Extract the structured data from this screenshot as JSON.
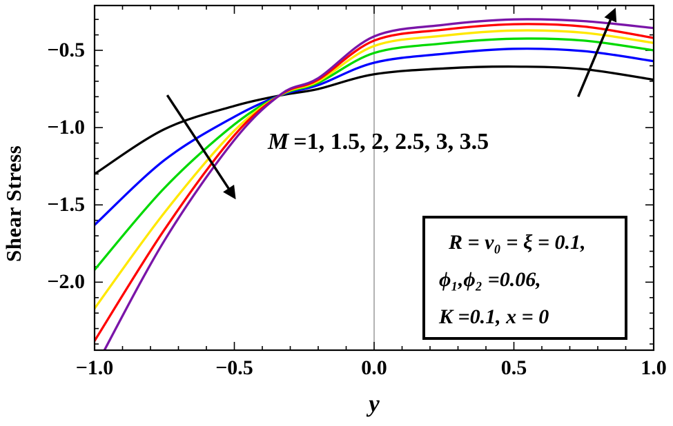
{
  "chart_data": {
    "type": "line",
    "title": "",
    "xlabel": "y",
    "ylabel": "Shear Stress",
    "xlim": [
      -1.0,
      1.0
    ],
    "ylim": [
      -2.44,
      -0.21
    ],
    "grid": false,
    "legend_position": "none",
    "zero_line_x": 0.0,
    "x_ticks": [
      -1.0,
      -0.5,
      0.0,
      0.5,
      1.0
    ],
    "x_tick_labels": [
      "−1.0",
      "−0.5",
      "0.0",
      "0.5",
      "1.0"
    ],
    "y_ticks": [
      -0.5,
      -1.0,
      -1.5,
      -2.0
    ],
    "y_tick_labels": [
      "−0.5",
      "−1.0",
      "−1.5",
      "−2.0"
    ],
    "minor_tick_step": 0.1,
    "x": [
      -1.0,
      -0.75,
      -0.5,
      -0.33,
      -0.2,
      0.0,
      0.25,
      0.5,
      0.75,
      1.0
    ],
    "series": [
      {
        "name": "M=1",
        "M": 1,
        "color": "#000000",
        "values": [
          -1.3,
          -1.01,
          -0.86,
          -0.79,
          -0.75,
          -0.655,
          -0.617,
          -0.605,
          -0.622,
          -0.69
        ]
      },
      {
        "name": "M=1.5",
        "M": 1.5,
        "color": "#0000FF",
        "values": [
          -1.63,
          -1.21,
          -0.93,
          -0.788,
          -0.725,
          -0.58,
          -0.522,
          -0.49,
          -0.505,
          -0.57
        ]
      },
      {
        "name": "M=2",
        "M": 2,
        "color": "#00D900",
        "values": [
          -1.92,
          -1.39,
          -0.98,
          -0.786,
          -0.71,
          -0.517,
          -0.455,
          -0.425,
          -0.437,
          -0.5
        ]
      },
      {
        "name": "M=2.5",
        "M": 2.5,
        "color": "#FFE800",
        "values": [
          -2.17,
          -1.55,
          -1.02,
          -0.784,
          -0.7,
          -0.472,
          -0.405,
          -0.372,
          -0.386,
          -0.452
        ]
      },
      {
        "name": "M=3",
        "M": 3,
        "color": "#FF0000",
        "values": [
          -2.38,
          -1.66,
          -1.05,
          -0.782,
          -0.69,
          -0.437,
          -0.366,
          -0.331,
          -0.346,
          -0.42
        ]
      },
      {
        "name": "M=3.5",
        "M": 3.5,
        "color": "#7A15A8",
        "values": [
          -2.56,
          -1.73,
          -1.08,
          -0.78,
          -0.68,
          -0.41,
          -0.335,
          -0.3,
          -0.311,
          -0.356
        ]
      }
    ],
    "arrows": [
      {
        "name": "decrease-arrow",
        "from": [
          -0.74,
          -0.79
        ],
        "to": [
          -0.5,
          -1.45
        ]
      },
      {
        "name": "increase-arrow",
        "from": [
          0.73,
          -0.8
        ],
        "to": [
          0.86,
          -0.24
        ]
      }
    ],
    "annotations": {
      "m_label_var": "M",
      "m_label_rest": "=1, 1.5, 2, 2.5, 3, 3.5",
      "param_lines": [
        "R = v₀ = ξ = 0.1,",
        "ϕ₁,ϕ₂ =0.06,",
        "K =0.1, x = 0"
      ]
    },
    "frame_color": "#000000",
    "zero_line_color": "#888888"
  }
}
